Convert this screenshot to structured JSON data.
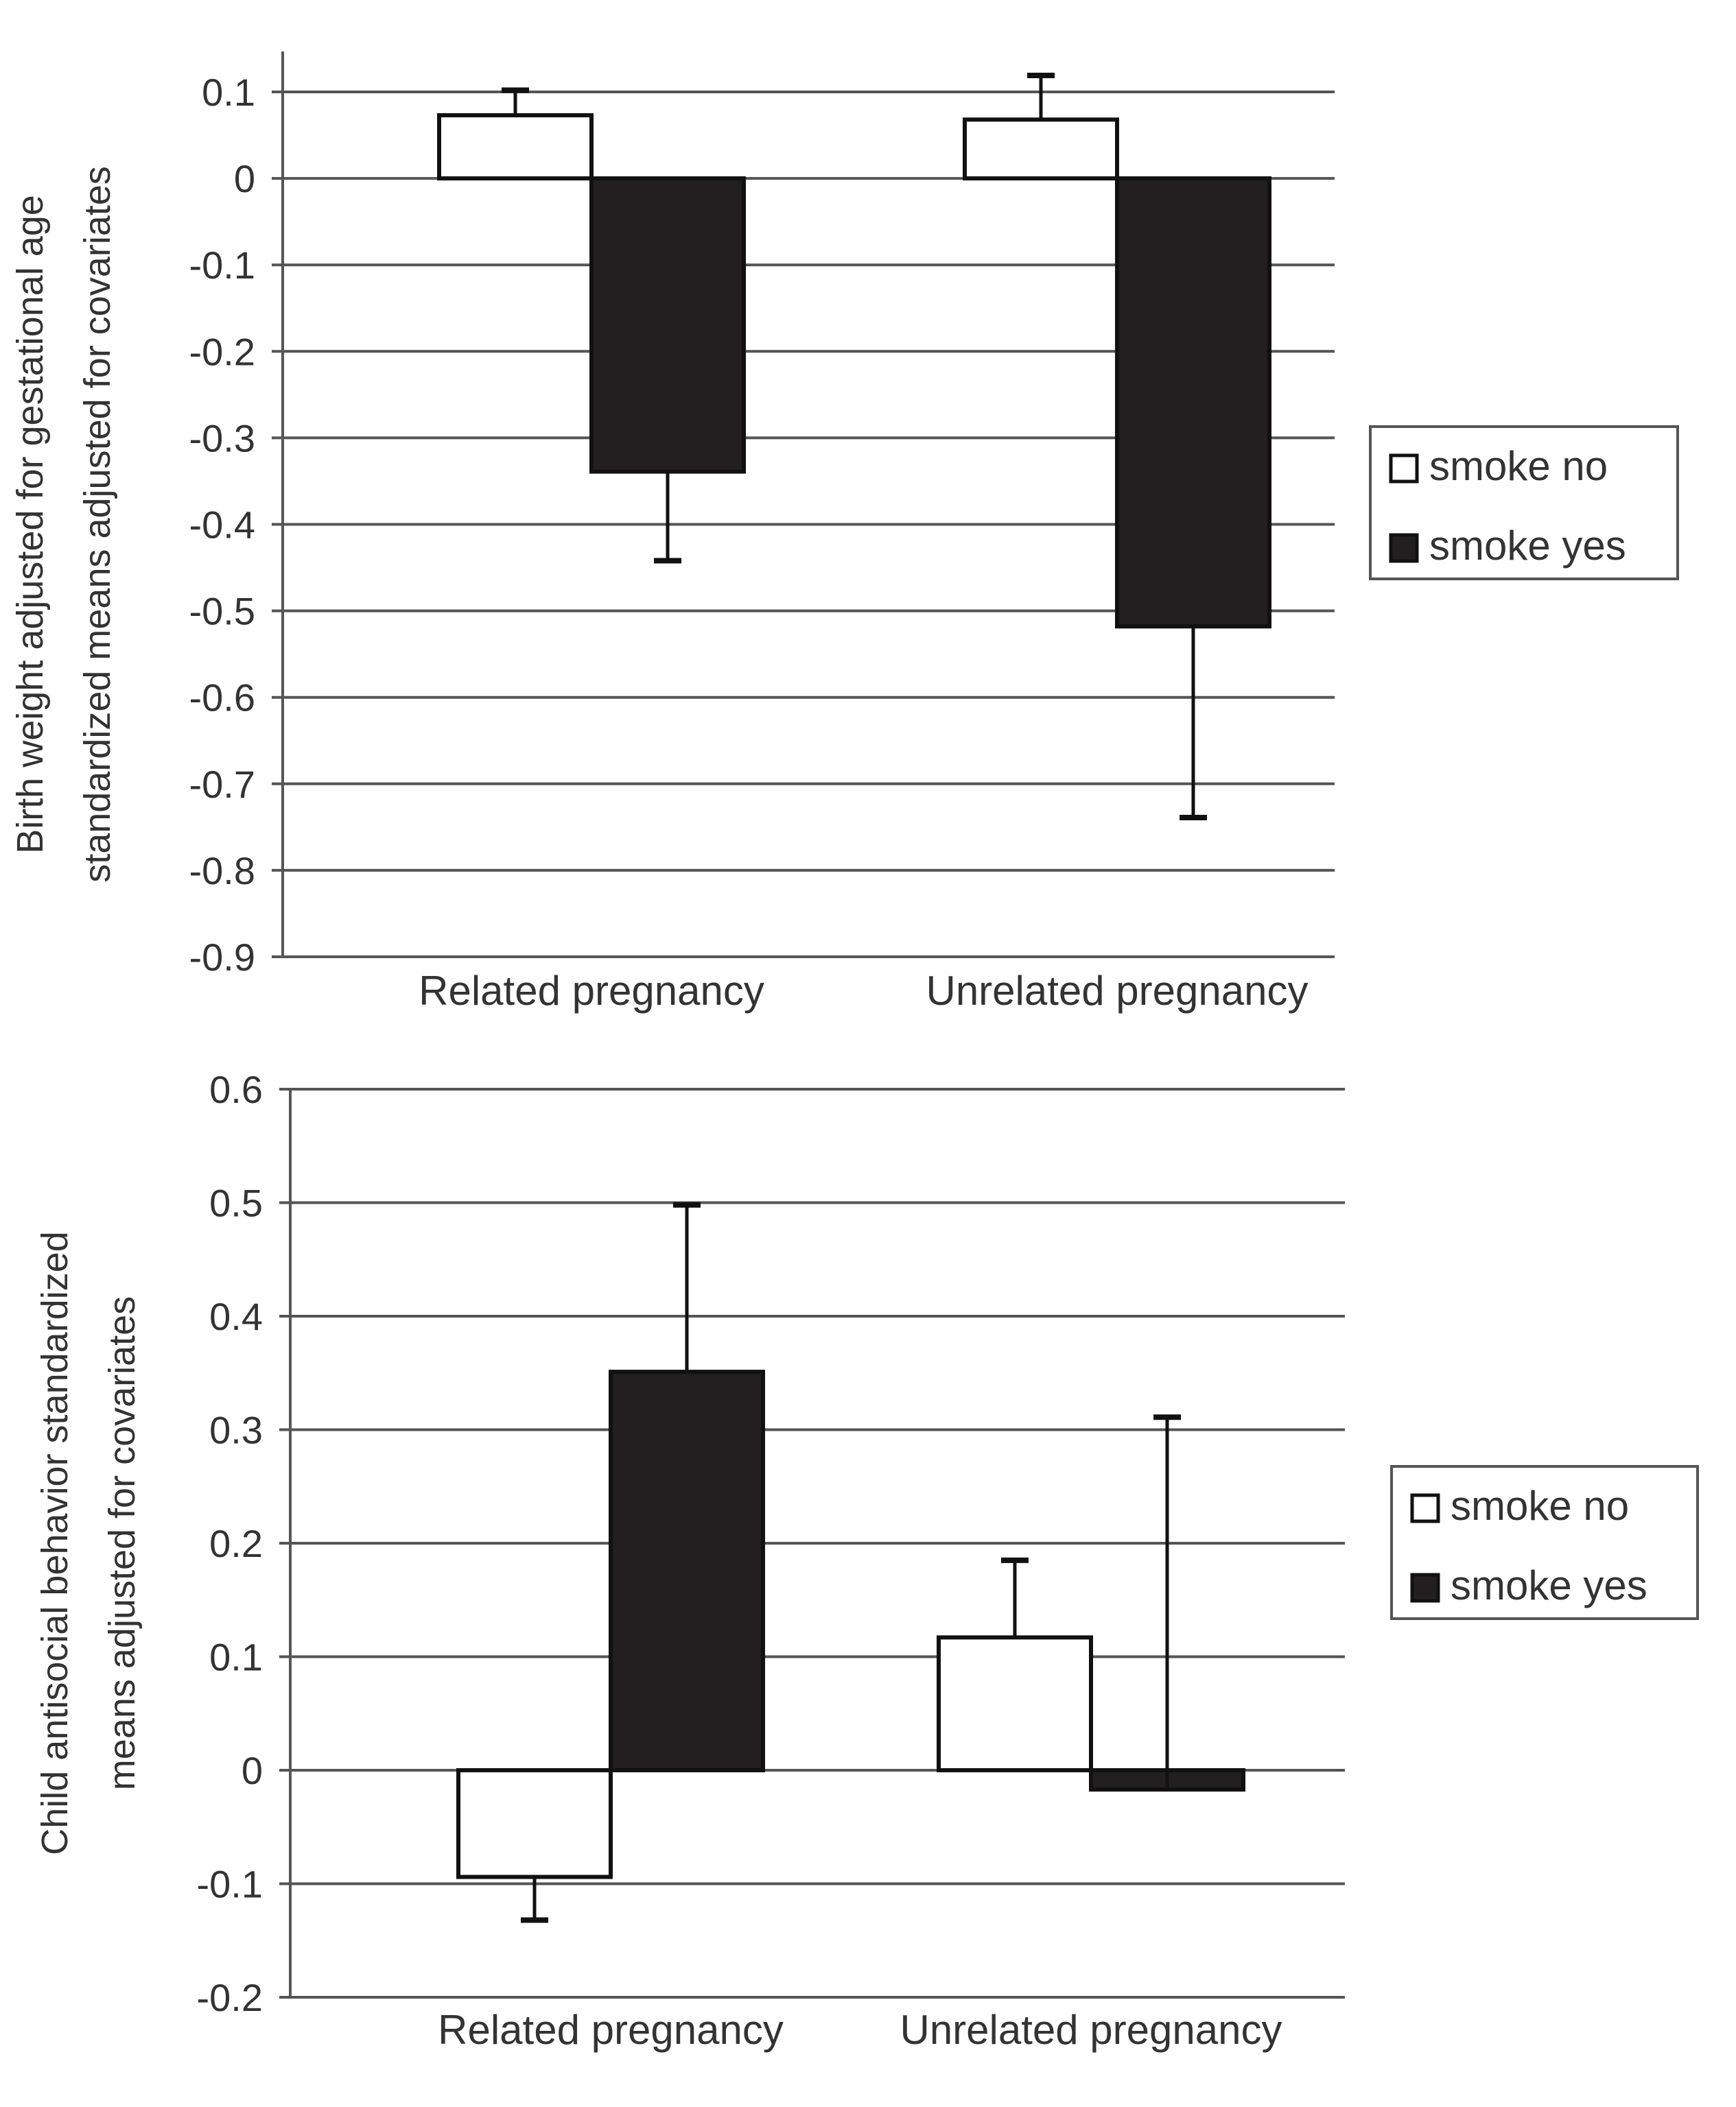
{
  "chart_data": [
    {
      "type": "bar",
      "title": "",
      "ylabel": [
        "Birth weight adjusted for gestational age",
        "standardized means adjusted for covariates"
      ],
      "xlabel": "",
      "categories": [
        "Related pregnancy",
        "Unrelated pregnancy"
      ],
      "ylim": [
        -0.9,
        0.1
      ],
      "yticks": [
        "0.1",
        "0",
        "-0.1",
        "-0.2",
        "-0.3",
        "-0.4",
        "-0.5",
        "-0.6",
        "-0.7",
        "-0.8",
        "-0.9"
      ],
      "grid": true,
      "legend_position": "right",
      "series": [
        {
          "name": "smoke no",
          "fill": "#ffffff",
          "values": [
            0.073,
            0.068
          ],
          "error_bar_ends": [
            0.102,
            0.119
          ]
        },
        {
          "name": "smoke yes",
          "fill": "#231f20",
          "values": [
            -0.339,
            -0.518
          ],
          "error_bar_ends": [
            -0.442,
            -0.739
          ]
        }
      ]
    },
    {
      "type": "bar",
      "title": "",
      "ylabel": [
        "Child antisocial behavior standardized",
        "means adjusted for covariates"
      ],
      "xlabel": "",
      "categories": [
        "Related pregnancy",
        "Unrelated pregnancy"
      ],
      "ylim": [
        -0.2,
        0.6
      ],
      "yticks": [
        "0.6",
        "0.5",
        "0.4",
        "0.3",
        "0.2",
        "0.1",
        "0",
        "-0.1",
        "-0.2"
      ],
      "grid": true,
      "legend_position": "right",
      "series": [
        {
          "name": "smoke no",
          "fill": "#ffffff",
          "values": [
            -0.094,
            0.117
          ],
          "error_bar_ends": [
            -0.132,
            0.185
          ]
        },
        {
          "name": "smoke yes",
          "fill": "#231f20",
          "values": [
            0.351,
            -0.017
          ],
          "error_bar_ends": [
            0.498,
            0.311
          ]
        }
      ]
    }
  ]
}
